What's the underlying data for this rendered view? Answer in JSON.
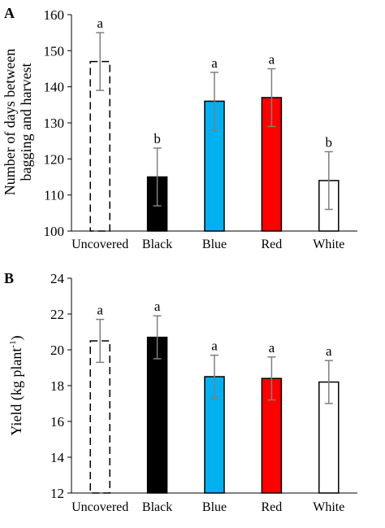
{
  "chart_data": [
    {
      "panel_label": "A",
      "type": "bar",
      "categories": [
        "Uncovered",
        "Black",
        "Blue",
        "Red",
        "White"
      ],
      "values": [
        147,
        115,
        136,
        137,
        114
      ],
      "error": [
        8,
        8,
        8,
        8,
        8
      ],
      "letters": [
        "a",
        "b",
        "a",
        "a",
        "b"
      ],
      "fills": [
        "none",
        "#000000",
        "#00b0f0",
        "#ff0000",
        "#ffffff"
      ],
      "dashed": [
        true,
        false,
        false,
        false,
        false
      ],
      "ylabel_lines": [
        "Number of days between",
        "bagging and harvest"
      ],
      "ylim": [
        100,
        160
      ],
      "yticks": [
        "100",
        "110",
        "120",
        "130",
        "140",
        "150",
        "160"
      ],
      "grid": false
    },
    {
      "panel_label": "B",
      "type": "bar",
      "categories": [
        "Uncovered",
        "Black",
        "Blue",
        "Red",
        "White"
      ],
      "values": [
        20.5,
        20.7,
        18.5,
        18.4,
        18.2
      ],
      "error": [
        1.2,
        1.2,
        1.2,
        1.2,
        1.2
      ],
      "letters": [
        "a",
        "a",
        "a",
        "a",
        "a"
      ],
      "fills": [
        "none",
        "#000000",
        "#00b0f0",
        "#ff0000",
        "#ffffff"
      ],
      "dashed": [
        true,
        false,
        false,
        false,
        false
      ],
      "ylabel_main": "Yield (kg plant",
      "ylabel_sup": "-1",
      "ylabel_end": ")",
      "ylim": [
        12,
        24
      ],
      "yticks": [
        "12",
        "14",
        "16",
        "18",
        "20",
        "22",
        "24"
      ],
      "grid": false
    }
  ]
}
